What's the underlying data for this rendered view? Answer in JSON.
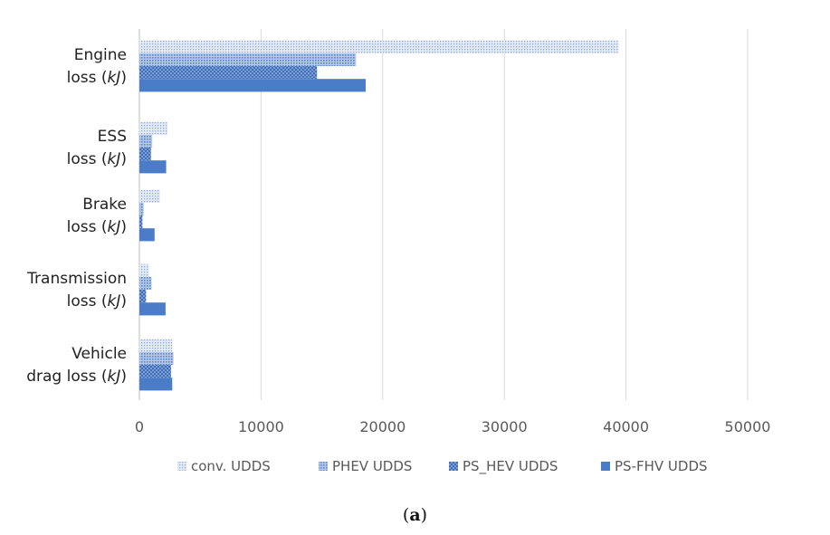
{
  "caption": {
    "open": "(",
    "letter": "a",
    "close": ")"
  },
  "chart_data": {
    "type": "bar",
    "orientation": "horizontal",
    "categories": [
      {
        "line1": "Engine",
        "line2_pre": "loss (",
        "line2_ital": "kJ",
        "line2_post": ")"
      },
      {
        "line1": "ESS",
        "line2_pre": "loss (",
        "line2_ital": "kJ",
        "line2_post": ")"
      },
      {
        "line1": "Brake",
        "line2_pre": "loss (",
        "line2_ital": "kJ",
        "line2_post": ")"
      },
      {
        "line1": "Transmission",
        "line2_pre": "loss (",
        "line2_ital": "kJ",
        "line2_post": ")"
      },
      {
        "line1": "Vehicle",
        "line2_pre": "drag loss (",
        "line2_ital": "kJ",
        "line2_post": ")"
      }
    ],
    "series": [
      {
        "name": "conv. UDDS",
        "values": [
          39400,
          2300,
          1700,
          800,
          2700
        ],
        "color": "#c9d6ee",
        "pattern": "fine-dots"
      },
      {
        "name": "PHEV UDDS",
        "values": [
          17800,
          1050,
          350,
          1000,
          2800
        ],
        "color": "#8fabdc",
        "pattern": "medium-dots"
      },
      {
        "name": "PS_HEV UDDS",
        "values": [
          14600,
          950,
          250,
          550,
          2600
        ],
        "color": "#5a86cc",
        "pattern": "large-dots"
      },
      {
        "name": "PS-FHV UDDS",
        "values": [
          18600,
          2200,
          1250,
          2150,
          2700
        ],
        "color": "#4a7cc7",
        "pattern": "solid"
      }
    ],
    "xlim": [
      0,
      50000
    ],
    "xticks": [
      "0",
      "10000",
      "20000",
      "30000",
      "40000",
      "50000"
    ],
    "grid": true,
    "legend_position": "bottom"
  }
}
